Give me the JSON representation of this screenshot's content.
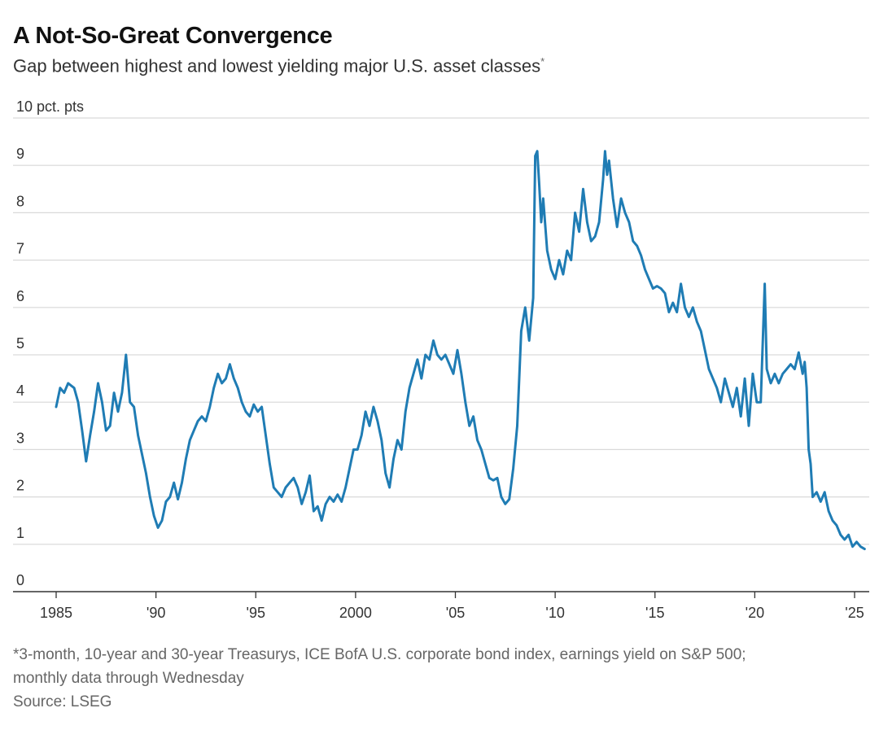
{
  "title": "A Not-So-Great Convergence",
  "subtitle": "Gap between highest and lowest yielding major U.S. asset classes",
  "subtitle_mark": "*",
  "footnote_line1": "*3-month, 10-year and 30-year Treasurys, ICE BofA U.S. corporate bond index, earnings yield on S&P 500;",
  "footnote_line2": "monthly data through Wednesday",
  "source": "Source: LSEG",
  "colors": {
    "line": "#1f7cb4",
    "grid": "#d9d9d9",
    "axis": "#333333",
    "text": "#333333"
  },
  "chart_data": {
    "type": "line",
    "title": "A Not-So-Great Convergence",
    "subtitle": "Gap between highest and lowest yielding major U.S. asset classes",
    "ylabel": "",
    "y_unit_label": "10 pct. pts",
    "ylim": [
      0,
      10
    ],
    "xlim": [
      1985,
      2025.7
    ],
    "y_ticks": [
      0,
      1,
      2,
      3,
      4,
      5,
      6,
      7,
      8,
      9,
      10
    ],
    "y_tick_labels": [
      "0",
      "1",
      "2",
      "3",
      "4",
      "5",
      "6",
      "7",
      "8",
      "9",
      "10 pct. pts"
    ],
    "x_ticks": [
      1985,
      1990,
      1995,
      2000,
      2005,
      2010,
      2015,
      2020,
      2025
    ],
    "x_tick_labels": [
      "1985",
      "'90",
      "'95",
      "2000",
      "'05",
      "'10",
      "'15",
      "'20",
      "'25"
    ],
    "grid": "horizontal",
    "legend": "none",
    "series": [
      {
        "color": "#1f7cb4",
        "points": [
          [
            1985.0,
            3.9
          ],
          [
            1985.2,
            4.3
          ],
          [
            1985.4,
            4.2
          ],
          [
            1985.6,
            4.4
          ],
          [
            1985.9,
            4.3
          ],
          [
            1986.1,
            4.0
          ],
          [
            1986.3,
            3.4
          ],
          [
            1986.5,
            2.75
          ],
          [
            1986.7,
            3.3
          ],
          [
            1986.9,
            3.8
          ],
          [
            1987.1,
            4.4
          ],
          [
            1987.3,
            4.0
          ],
          [
            1987.5,
            3.4
          ],
          [
            1987.7,
            3.5
          ],
          [
            1987.9,
            4.2
          ],
          [
            1988.1,
            3.8
          ],
          [
            1988.3,
            4.2
          ],
          [
            1988.5,
            5.0
          ],
          [
            1988.7,
            4.0
          ],
          [
            1988.9,
            3.9
          ],
          [
            1989.1,
            3.3
          ],
          [
            1989.3,
            2.9
          ],
          [
            1989.5,
            2.5
          ],
          [
            1989.7,
            2.0
          ],
          [
            1989.9,
            1.6
          ],
          [
            1990.1,
            1.35
          ],
          [
            1990.3,
            1.5
          ],
          [
            1990.5,
            1.9
          ],
          [
            1990.7,
            2.0
          ],
          [
            1990.9,
            2.3
          ],
          [
            1991.1,
            1.95
          ],
          [
            1991.3,
            2.3
          ],
          [
            1991.5,
            2.8
          ],
          [
            1991.7,
            3.2
          ],
          [
            1991.9,
            3.4
          ],
          [
            1992.1,
            3.6
          ],
          [
            1992.3,
            3.7
          ],
          [
            1992.5,
            3.6
          ],
          [
            1992.7,
            3.9
          ],
          [
            1992.9,
            4.3
          ],
          [
            1993.1,
            4.6
          ],
          [
            1993.3,
            4.4
          ],
          [
            1993.5,
            4.5
          ],
          [
            1993.7,
            4.8
          ],
          [
            1993.9,
            4.5
          ],
          [
            1994.1,
            4.3
          ],
          [
            1994.3,
            4.0
          ],
          [
            1994.5,
            3.8
          ],
          [
            1994.7,
            3.7
          ],
          [
            1994.9,
            3.95
          ],
          [
            1995.1,
            3.8
          ],
          [
            1995.3,
            3.9
          ],
          [
            1995.5,
            3.3
          ],
          [
            1995.7,
            2.7
          ],
          [
            1995.9,
            2.2
          ],
          [
            1996.1,
            2.1
          ],
          [
            1996.3,
            2.0
          ],
          [
            1996.5,
            2.2
          ],
          [
            1996.7,
            2.3
          ],
          [
            1996.9,
            2.4
          ],
          [
            1997.1,
            2.2
          ],
          [
            1997.3,
            1.85
          ],
          [
            1997.5,
            2.1
          ],
          [
            1997.7,
            2.45
          ],
          [
            1997.9,
            1.7
          ],
          [
            1998.1,
            1.8
          ],
          [
            1998.3,
            1.5
          ],
          [
            1998.5,
            1.85
          ],
          [
            1998.7,
            2.0
          ],
          [
            1998.9,
            1.9
          ],
          [
            1999.1,
            2.05
          ],
          [
            1999.3,
            1.9
          ],
          [
            1999.5,
            2.2
          ],
          [
            1999.7,
            2.6
          ],
          [
            1999.9,
            3.0
          ],
          [
            2000.1,
            3.0
          ],
          [
            2000.3,
            3.3
          ],
          [
            2000.5,
            3.8
          ],
          [
            2000.7,
            3.5
          ],
          [
            2000.9,
            3.9
          ],
          [
            2001.1,
            3.6
          ],
          [
            2001.3,
            3.2
          ],
          [
            2001.5,
            2.5
          ],
          [
            2001.7,
            2.2
          ],
          [
            2001.9,
            2.8
          ],
          [
            2002.1,
            3.2
          ],
          [
            2002.3,
            3.0
          ],
          [
            2002.5,
            3.8
          ],
          [
            2002.7,
            4.3
          ],
          [
            2002.9,
            4.6
          ],
          [
            2003.1,
            4.9
          ],
          [
            2003.3,
            4.5
          ],
          [
            2003.5,
            5.0
          ],
          [
            2003.7,
            4.9
          ],
          [
            2003.9,
            5.3
          ],
          [
            2004.1,
            5.0
          ],
          [
            2004.3,
            4.9
          ],
          [
            2004.5,
            5.0
          ],
          [
            2004.7,
            4.8
          ],
          [
            2004.9,
            4.6
          ],
          [
            2005.1,
            5.1
          ],
          [
            2005.3,
            4.6
          ],
          [
            2005.5,
            4.0
          ],
          [
            2005.7,
            3.5
          ],
          [
            2005.9,
            3.7
          ],
          [
            2006.1,
            3.2
          ],
          [
            2006.3,
            3.0
          ],
          [
            2006.5,
            2.7
          ],
          [
            2006.7,
            2.4
          ],
          [
            2006.9,
            2.35
          ],
          [
            2007.1,
            2.4
          ],
          [
            2007.3,
            2.0
          ],
          [
            2007.5,
            1.85
          ],
          [
            2007.7,
            1.95
          ],
          [
            2007.9,
            2.6
          ],
          [
            2008.1,
            3.5
          ],
          [
            2008.3,
            5.5
          ],
          [
            2008.5,
            6.0
          ],
          [
            2008.7,
            5.3
          ],
          [
            2008.9,
            6.2
          ],
          [
            2009.0,
            9.2
          ],
          [
            2009.1,
            9.3
          ],
          [
            2009.2,
            8.6
          ],
          [
            2009.3,
            7.8
          ],
          [
            2009.4,
            8.3
          ],
          [
            2009.6,
            7.2
          ],
          [
            2009.8,
            6.8
          ],
          [
            2010.0,
            6.6
          ],
          [
            2010.2,
            7.0
          ],
          [
            2010.4,
            6.7
          ],
          [
            2010.6,
            7.2
          ],
          [
            2010.8,
            7.0
          ],
          [
            2011.0,
            8.0
          ],
          [
            2011.2,
            7.6
          ],
          [
            2011.4,
            8.5
          ],
          [
            2011.6,
            7.8
          ],
          [
            2011.8,
            7.4
          ],
          [
            2012.0,
            7.5
          ],
          [
            2012.2,
            7.8
          ],
          [
            2012.4,
            8.7
          ],
          [
            2012.5,
            9.3
          ],
          [
            2012.6,
            8.8
          ],
          [
            2012.7,
            9.1
          ],
          [
            2012.9,
            8.3
          ],
          [
            2013.1,
            7.7
          ],
          [
            2013.3,
            8.3
          ],
          [
            2013.5,
            8.0
          ],
          [
            2013.7,
            7.8
          ],
          [
            2013.9,
            7.4
          ],
          [
            2014.1,
            7.3
          ],
          [
            2014.3,
            7.1
          ],
          [
            2014.5,
            6.8
          ],
          [
            2014.7,
            6.6
          ],
          [
            2014.9,
            6.4
          ],
          [
            2015.1,
            6.45
          ],
          [
            2015.3,
            6.4
          ],
          [
            2015.5,
            6.3
          ],
          [
            2015.7,
            5.9
          ],
          [
            2015.9,
            6.1
          ],
          [
            2016.1,
            5.9
          ],
          [
            2016.3,
            6.5
          ],
          [
            2016.5,
            6.0
          ],
          [
            2016.7,
            5.8
          ],
          [
            2016.9,
            6.0
          ],
          [
            2017.1,
            5.7
          ],
          [
            2017.3,
            5.5
          ],
          [
            2017.5,
            5.1
          ],
          [
            2017.7,
            4.7
          ],
          [
            2017.9,
            4.5
          ],
          [
            2018.1,
            4.3
          ],
          [
            2018.3,
            4.0
          ],
          [
            2018.5,
            4.5
          ],
          [
            2018.7,
            4.2
          ],
          [
            2018.9,
            3.9
          ],
          [
            2019.1,
            4.3
          ],
          [
            2019.3,
            3.7
          ],
          [
            2019.5,
            4.5
          ],
          [
            2019.7,
            3.5
          ],
          [
            2019.9,
            4.6
          ],
          [
            2020.1,
            4.0
          ],
          [
            2020.3,
            4.0
          ],
          [
            2020.5,
            6.5
          ],
          [
            2020.6,
            4.7
          ],
          [
            2020.8,
            4.4
          ],
          [
            2021.0,
            4.6
          ],
          [
            2021.2,
            4.4
          ],
          [
            2021.4,
            4.6
          ],
          [
            2021.6,
            4.7
          ],
          [
            2021.8,
            4.8
          ],
          [
            2022.0,
            4.7
          ],
          [
            2022.2,
            5.05
          ],
          [
            2022.4,
            4.6
          ],
          [
            2022.5,
            4.85
          ],
          [
            2022.6,
            4.3
          ],
          [
            2022.7,
            3.0
          ],
          [
            2022.8,
            2.7
          ],
          [
            2022.9,
            2.0
          ],
          [
            2023.1,
            2.1
          ],
          [
            2023.3,
            1.9
          ],
          [
            2023.5,
            2.1
          ],
          [
            2023.7,
            1.7
          ],
          [
            2023.9,
            1.5
          ],
          [
            2024.1,
            1.4
          ],
          [
            2024.3,
            1.2
          ],
          [
            2024.5,
            1.1
          ],
          [
            2024.7,
            1.2
          ],
          [
            2024.9,
            0.95
          ],
          [
            2025.1,
            1.05
          ],
          [
            2025.3,
            0.95
          ],
          [
            2025.5,
            0.9
          ]
        ]
      }
    ]
  }
}
